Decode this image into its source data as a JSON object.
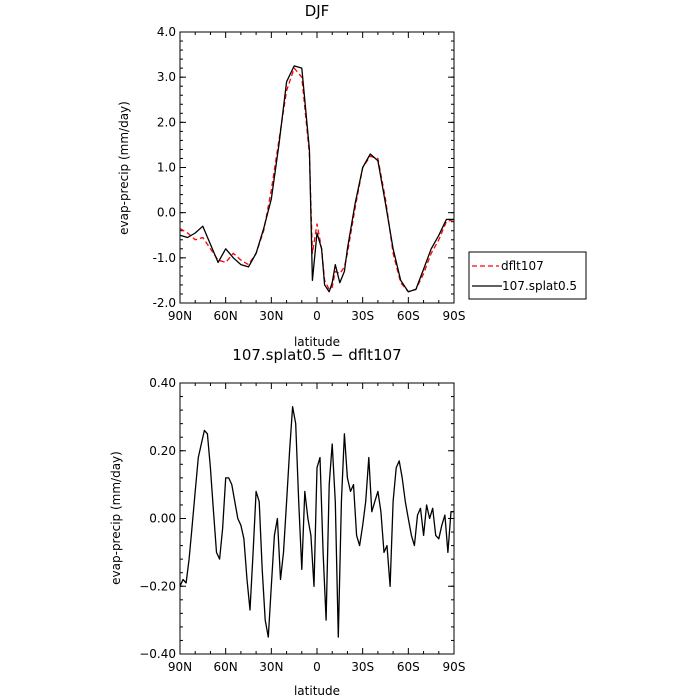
{
  "chart_data": [
    {
      "type": "line",
      "title": "DJF",
      "xlabel": "latitude",
      "ylabel": "evap-precip (mm/day)",
      "xlim": [
        -90,
        90
      ],
      "ylim": [
        -2.0,
        4.0
      ],
      "x_tick_values": [
        -90,
        -60,
        -30,
        0,
        30,
        60,
        90
      ],
      "x_ticks": [
        "90N",
        "60N",
        "30N",
        "0",
        "30S",
        "60S",
        "90S"
      ],
      "y_tick_values": [
        -2.0,
        -1.0,
        0.0,
        1.0,
        2.0,
        3.0,
        4.0
      ],
      "y_ticks": [
        "-2.0",
        "-1.0",
        "0.0",
        "1.0",
        "2.0",
        "3.0",
        "4.0"
      ],
      "legend_position": "right",
      "x": [
        -90,
        -85,
        -80,
        -75,
        -70,
        -65,
        -60,
        -55,
        -50,
        -45,
        -40,
        -35,
        -30,
        -25,
        -20,
        -15,
        -10,
        -5,
        -3,
        0,
        3,
        5,
        8,
        10,
        12,
        15,
        18,
        20,
        25,
        30,
        35,
        40,
        45,
        50,
        55,
        60,
        65,
        70,
        75,
        80,
        85,
        90
      ],
      "series": [
        {
          "name": "dflt107",
          "color": "#ff0000",
          "dash": "dashed",
          "values": [
            -0.35,
            -0.45,
            -0.6,
            -0.55,
            -0.8,
            -1.05,
            -1.1,
            -0.9,
            -1.05,
            -1.15,
            -0.9,
            -0.4,
            0.5,
            1.6,
            2.7,
            3.2,
            3.0,
            1.3,
            -0.9,
            -0.25,
            -0.8,
            -1.5,
            -1.7,
            -1.65,
            -1.3,
            -1.35,
            -1.2,
            -0.9,
            0.1,
            1.0,
            1.25,
            1.2,
            0.3,
            -0.9,
            -1.55,
            -1.75,
            -1.7,
            -1.35,
            -0.9,
            -0.6,
            -0.2,
            -0.15
          ]
        },
        {
          "name": "107.splat0.5",
          "color": "#000000",
          "dash": "solid",
          "values": [
            -0.5,
            -0.55,
            -0.45,
            -0.3,
            -0.7,
            -1.1,
            -0.8,
            -1.0,
            -1.15,
            -1.2,
            -0.9,
            -0.35,
            0.3,
            1.5,
            2.9,
            3.25,
            3.2,
            1.4,
            -1.5,
            -0.45,
            -0.8,
            -1.6,
            -1.75,
            -1.55,
            -1.15,
            -1.55,
            -1.3,
            -0.8,
            0.2,
            1.0,
            1.3,
            1.15,
            0.2,
            -0.8,
            -1.5,
            -1.75,
            -1.7,
            -1.25,
            -0.8,
            -0.5,
            -0.15,
            -0.15
          ]
        }
      ]
    },
    {
      "type": "line",
      "title": "107.splat0.5 − dflt107",
      "xlabel": "latitude",
      "ylabel": "evap-precip (mm/day)",
      "xlim": [
        -90,
        90
      ],
      "ylim": [
        -0.4,
        0.4
      ],
      "x_tick_values": [
        -90,
        -60,
        -30,
        0,
        30,
        60,
        90
      ],
      "x_ticks": [
        "90N",
        "60N",
        "30N",
        "0",
        "30S",
        "60S",
        "90S"
      ],
      "y_tick_values": [
        -0.4,
        -0.2,
        0.0,
        0.2,
        0.4
      ],
      "y_ticks": [
        "−0.40",
        "−0.20",
        "0.00",
        "0.20",
        "0.40"
      ],
      "x": [
        -90,
        -88,
        -86,
        -84,
        -82,
        -80,
        -78,
        -76,
        -74,
        -72,
        -70,
        -68,
        -66,
        -64,
        -62,
        -60,
        -58,
        -56,
        -54,
        -52,
        -50,
        -48,
        -46,
        -44,
        -42,
        -40,
        -38,
        -36,
        -34,
        -32,
        -30,
        -28,
        -26,
        -24,
        -22,
        -20,
        -18,
        -16,
        -14,
        -12,
        -10,
        -8,
        -6,
        -4,
        -2,
        0,
        2,
        4,
        6,
        8,
        10,
        12,
        14,
        16,
        18,
        20,
        22,
        24,
        26,
        28,
        30,
        32,
        34,
        36,
        38,
        40,
        42,
        44,
        46,
        48,
        50,
        52,
        54,
        56,
        58,
        60,
        62,
        64,
        66,
        68,
        70,
        72,
        74,
        76,
        78,
        80,
        82,
        84,
        86,
        88,
        90
      ],
      "series": [
        {
          "name": "",
          "color": "#000000",
          "dash": "solid",
          "values": [
            -0.2,
            -0.18,
            -0.19,
            -0.12,
            -0.02,
            0.08,
            0.18,
            0.22,
            0.26,
            0.25,
            0.15,
            0.02,
            -0.1,
            -0.12,
            -0.03,
            0.12,
            0.12,
            0.1,
            0.05,
            0.0,
            -0.02,
            -0.06,
            -0.18,
            -0.27,
            -0.1,
            0.08,
            0.05,
            -0.15,
            -0.3,
            -0.35,
            -0.2,
            -0.05,
            0.0,
            -0.18,
            -0.1,
            0.05,
            0.2,
            0.33,
            0.28,
            0.05,
            -0.15,
            0.08,
            0.0,
            -0.05,
            -0.2,
            0.15,
            0.18,
            -0.1,
            -0.3,
            0.1,
            0.22,
            0.05,
            -0.35,
            0.05,
            0.25,
            0.12,
            0.08,
            0.1,
            -0.05,
            -0.08,
            -0.02,
            0.05,
            0.18,
            0.02,
            0.05,
            0.08,
            0.02,
            -0.1,
            -0.08,
            -0.2,
            0.05,
            0.15,
            0.17,
            0.12,
            0.05,
            0.0,
            -0.05,
            -0.08,
            0.01,
            0.03,
            -0.05,
            0.04,
            0.0,
            0.03,
            -0.05,
            -0.06,
            -0.02,
            0.01,
            -0.1,
            0.02,
            0.02
          ]
        }
      ]
    }
  ]
}
